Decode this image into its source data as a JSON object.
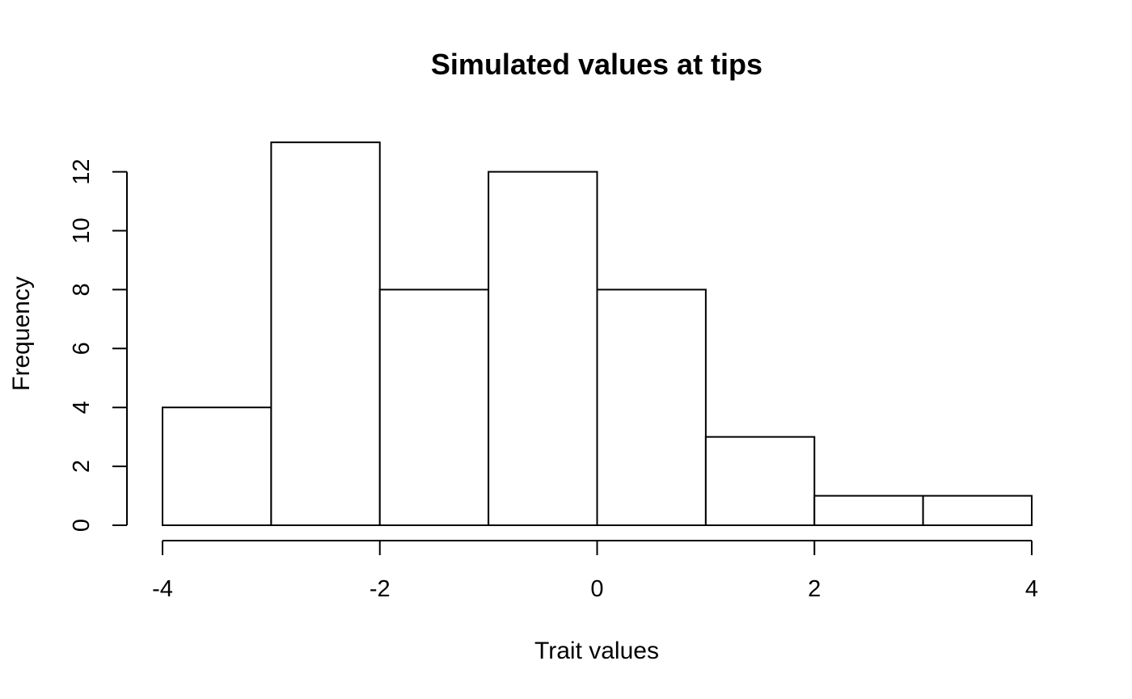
{
  "chart_data": {
    "type": "bar",
    "title": "Simulated values at tips",
    "xlabel": "Trait values",
    "ylabel": "Frequency",
    "bins": [
      {
        "from": -4,
        "to": -3,
        "count": 4
      },
      {
        "from": -3,
        "to": -2,
        "count": 13
      },
      {
        "from": -2,
        "to": -1,
        "count": 8
      },
      {
        "from": -1,
        "to": 0,
        "count": 12
      },
      {
        "from": 0,
        "to": 1,
        "count": 8
      },
      {
        "from": 1,
        "to": 2,
        "count": 3
      },
      {
        "from": 2,
        "to": 3,
        "count": 1
      },
      {
        "from": 3,
        "to": 4,
        "count": 1
      }
    ],
    "xlim": [
      -4,
      4
    ],
    "xticks": [
      -4,
      -2,
      0,
      2,
      4
    ],
    "xtick_labels": [
      "-4",
      "-2",
      "0",
      "2",
      "4"
    ],
    "yticks": [
      0,
      2,
      4,
      6,
      8,
      10,
      12
    ],
    "ytick_labels": [
      "0",
      "2",
      "4",
      "6",
      "8",
      "10",
      "12"
    ],
    "grid": false,
    "legend": "none",
    "colors": {
      "bar_fill": "#ffffff",
      "bar_stroke": "#000000"
    }
  }
}
